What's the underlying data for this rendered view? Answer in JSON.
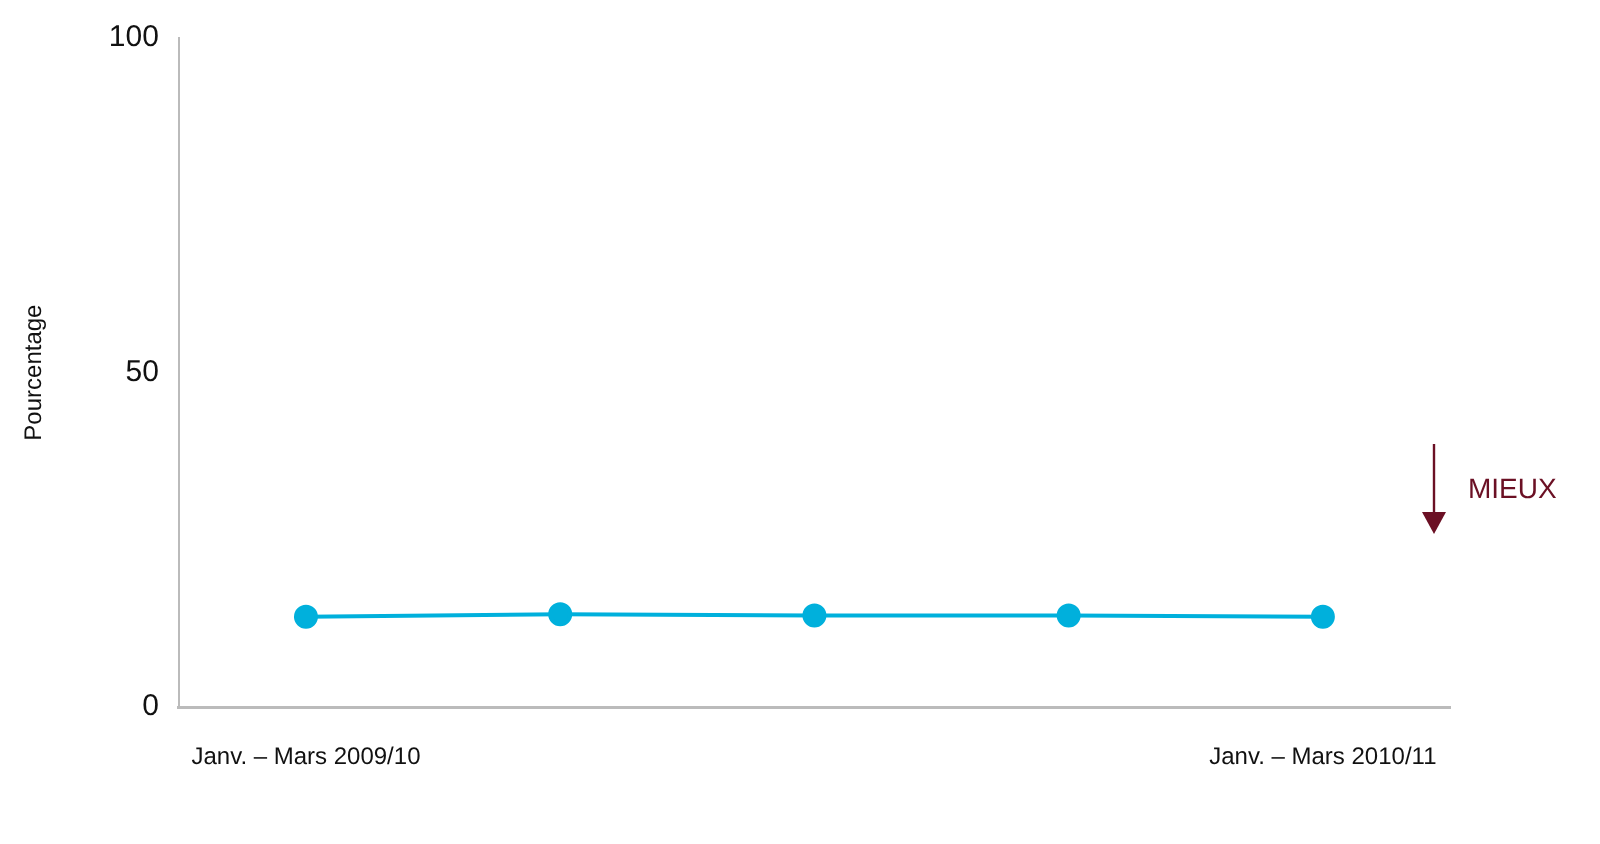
{
  "chart_data": {
    "type": "line",
    "ylabel": "Pourcentage",
    "categories": [
      "Janv. – Mars 2009/10",
      null,
      null,
      null,
      "Janv. – Mars 2010/11"
    ],
    "series": [
      {
        "color": "#00b0dc",
        "values": [
          13.5,
          13.9,
          13.7,
          13.7,
          13.5
        ]
      }
    ],
    "ylim": [
      0,
      100
    ],
    "yticks": [
      0,
      50,
      100
    ],
    "grid": false,
    "legend": false,
    "marker": "circle",
    "line_style": "solid",
    "annotations": [
      "MIEUX"
    ]
  }
}
